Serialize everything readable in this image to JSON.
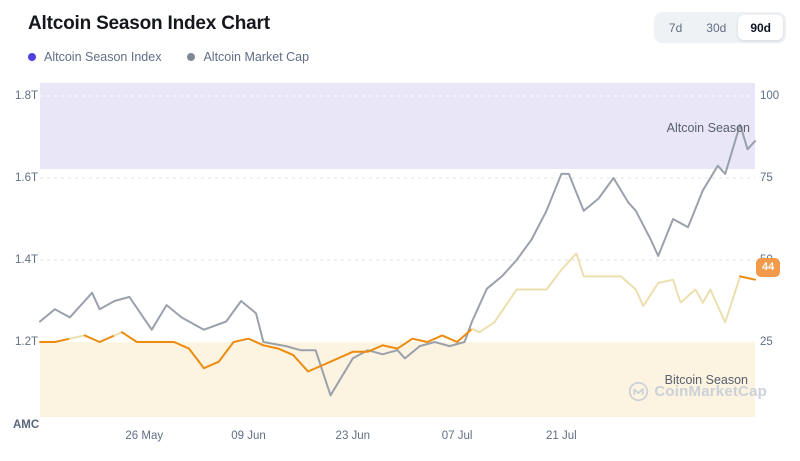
{
  "header": {
    "title": "Altcoin Season Index Chart"
  },
  "range_selector": {
    "options": [
      {
        "label": "7d",
        "active": false
      },
      {
        "label": "30d",
        "active": false
      },
      {
        "label": "90d",
        "active": true
      }
    ]
  },
  "legend": {
    "items": [
      {
        "label": "Altcoin Season Index",
        "color": "#4f40e8"
      },
      {
        "label": "Altcoin Market Cap",
        "color": "#7f8894"
      }
    ]
  },
  "watermark": {
    "text": "CoinMarketCap"
  },
  "colors": {
    "altcoin_zone_fill": "#e9e6f8",
    "bitcoin_zone_fill": "#fcf3e1",
    "market_cap_line": "#9ba1ab",
    "index_line_neutral": "#ecdfae",
    "index_line_bitcoin_zone": "#ed8b0e",
    "badge_bg": "#f29a4a"
  },
  "chart_data": {
    "type": "line",
    "title": "Altcoin Season Index Chart",
    "grid": "horizontal-dashed",
    "x_axis": {
      "tick_labels": [
        "26 May",
        "09 Jun",
        "23 Jun",
        "07 Jul",
        "21 Jul"
      ],
      "tick_day_offsets": [
        14,
        28,
        42,
        56,
        70
      ],
      "range_days": [
        0,
        96
      ]
    },
    "left_axis": {
      "label": "AMC",
      "unit": "USD trillions",
      "tick_labels": [
        "1.8T",
        "1.6T",
        "1.4T",
        "1.2T"
      ],
      "tick_values": [
        1.8,
        1.6,
        1.4,
        1.2
      ],
      "range": [
        1.02,
        1.84
      ]
    },
    "right_axis": {
      "label": "Altcoin Season Index",
      "tick_labels": [
        "100",
        "75",
        "50",
        "25"
      ],
      "tick_values": [
        100,
        75,
        50,
        25
      ],
      "range": [
        2,
        105
      ]
    },
    "zones": {
      "altcoin_season": {
        "label": "Altcoin Season",
        "condition": "index >= 75"
      },
      "bitcoin_season": {
        "label": "Bitcoin Season",
        "condition": "index <= 25"
      }
    },
    "series": [
      {
        "name": "Altcoin Season Index",
        "axis": "right",
        "current_value": 44,
        "days": [
          0,
          2,
          4,
          6,
          8,
          10,
          11,
          13,
          15,
          18,
          20,
          22,
          24,
          26,
          28,
          30,
          32,
          34,
          36,
          38,
          40,
          42,
          44,
          46,
          48,
          50,
          52,
          54,
          56,
          58,
          59,
          61,
          64,
          66,
          68,
          70,
          72,
          73,
          75,
          76,
          78,
          80,
          81,
          83,
          85,
          86,
          88,
          89,
          90,
          92,
          94,
          96
        ],
        "values": [
          25,
          25,
          26,
          27,
          25,
          27,
          28,
          25,
          25,
          25,
          23,
          17,
          19,
          25,
          26,
          24,
          23,
          21,
          16,
          18,
          20,
          22,
          22,
          24,
          23,
          26,
          25,
          27,
          25,
          29,
          28,
          31,
          41,
          41,
          41,
          47,
          52,
          45,
          45,
          45,
          45,
          41,
          36,
          43,
          44,
          37,
          41,
          37,
          41,
          31,
          45,
          44
        ]
      },
      {
        "name": "Altcoin Market Cap",
        "axis": "left",
        "days": [
          0,
          2,
          4,
          7,
          8,
          10,
          12,
          15,
          17,
          19,
          22,
          25,
          27,
          29,
          30,
          33,
          35,
          37,
          39,
          41,
          42,
          44,
          46,
          48,
          49,
          51,
          53,
          55,
          57,
          58,
          60,
          62,
          64,
          66,
          68,
          70,
          71,
          73,
          75,
          77,
          79,
          80,
          82,
          83,
          85,
          87,
          89,
          91,
          92,
          94,
          95,
          96
        ],
        "values": [
          1.25,
          1.28,
          1.26,
          1.32,
          1.28,
          1.3,
          1.31,
          1.23,
          1.29,
          1.26,
          1.23,
          1.25,
          1.3,
          1.27,
          1.2,
          1.19,
          1.18,
          1.18,
          1.07,
          1.13,
          1.16,
          1.18,
          1.17,
          1.18,
          1.16,
          1.19,
          1.2,
          1.19,
          1.2,
          1.25,
          1.33,
          1.36,
          1.4,
          1.45,
          1.52,
          1.61,
          1.61,
          1.52,
          1.55,
          1.6,
          1.54,
          1.52,
          1.45,
          1.41,
          1.5,
          1.48,
          1.57,
          1.63,
          1.61,
          1.73,
          1.67,
          1.69
        ]
      }
    ]
  }
}
